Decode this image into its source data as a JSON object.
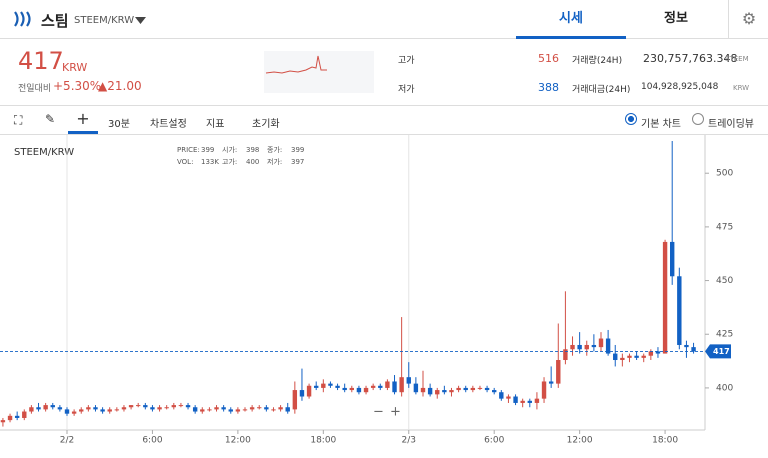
{
  "header": {
    "name": "스팀",
    "pair": "STEEM/KRW",
    "tabs": [
      "시세",
      "정보"
    ]
  },
  "ticker": {
    "price": 417,
    "unit": "KRW",
    "change_label": "전일대비",
    "change_pct": "+5.30%",
    "change_abs": "▲21.00",
    "high_label": "고가",
    "high": 516,
    "low_label": "저가",
    "low": 388,
    "volume_label": "거래량(24H)",
    "volume": "230,757,763.348",
    "volume_unit": "STEEM",
    "amount_label": "거래대금(24H)",
    "amount": "104,928,925,048",
    "amount_unit": "KRW"
  },
  "toolbar": {
    "interval": "30분",
    "settings": "차트설정",
    "indicators": "지표",
    "reset": "초기화",
    "basic": "기본 차트",
    "tradingview": "트레이딩뷰"
  },
  "chart_data": {
    "type": "candlestick",
    "title": "STEEM/KRW",
    "info": [
      [
        "PRICE:",
        "399"
      ],
      [
        "시가:",
        "398"
      ],
      [
        "종가:",
        "399"
      ],
      [
        "VOL:",
        "133K"
      ],
      [
        "고가:",
        "400"
      ],
      [
        "저가:",
        "397"
      ]
    ],
    "up_color": "#d24f45",
    "down_color": "#1261c4",
    "last": 417,
    "ylim": [
      380.4,
      517.8
    ],
    "yticks": [
      400,
      425,
      450,
      475,
      500
    ],
    "xticks": [
      {
        "value": 9,
        "label": "2/2"
      },
      {
        "value": 21,
        "label": "6:00"
      },
      {
        "value": 33,
        "label": "12:00"
      },
      {
        "value": 45,
        "label": "18:00"
      },
      {
        "value": 57,
        "label": "2/3"
      },
      {
        "value": 69,
        "label": "6:00"
      },
      {
        "value": 81,
        "label": "12:00"
      },
      {
        "value": 93,
        "label": "18:00"
      }
    ],
    "candles": [
      [
        384,
        386,
        382,
        385
      ],
      [
        385,
        388,
        384,
        387
      ],
      [
        387,
        389,
        385,
        386
      ],
      [
        386,
        390,
        385,
        389
      ],
      [
        389,
        392,
        388,
        391
      ],
      [
        391,
        393,
        389,
        390
      ],
      [
        390,
        393,
        389,
        392
      ],
      [
        392,
        393,
        390,
        391
      ],
      [
        391,
        392,
        389,
        390
      ],
      [
        390,
        391,
        387,
        388
      ],
      [
        388,
        390,
        387,
        389
      ],
      [
        389,
        391,
        388,
        390
      ],
      [
        390,
        392,
        389,
        391
      ],
      [
        391,
        392,
        389,
        390
      ],
      [
        390,
        391,
        388,
        389
      ],
      [
        389,
        391,
        388,
        390
      ],
      [
        390,
        391,
        389,
        390
      ],
      [
        390,
        392,
        389,
        391
      ],
      [
        391,
        392,
        390,
        392
      ],
      [
        392,
        393,
        391,
        392
      ],
      [
        392,
        393,
        390,
        391
      ],
      [
        391,
        392,
        389,
        390
      ],
      [
        390,
        392,
        389,
        391
      ],
      [
        391,
        392,
        390,
        391
      ],
      [
        391,
        393,
        390,
        392
      ],
      [
        392,
        393,
        391,
        392
      ],
      [
        392,
        393,
        390,
        391
      ],
      [
        391,
        392,
        388,
        389
      ],
      [
        389,
        391,
        388,
        390
      ],
      [
        390,
        391,
        389,
        390
      ],
      [
        390,
        392,
        389,
        391
      ],
      [
        391,
        392,
        389,
        390
      ],
      [
        390,
        391,
        388,
        389
      ],
      [
        389,
        391,
        388,
        390
      ],
      [
        390,
        391,
        389,
        390
      ],
      [
        390,
        392,
        389,
        391
      ],
      [
        391,
        392,
        390,
        391
      ],
      [
        391,
        392,
        389,
        390
      ],
      [
        390,
        391,
        389,
        390
      ],
      [
        390,
        392,
        389,
        391
      ],
      [
        391,
        393,
        388,
        389
      ],
      [
        390,
        403,
        388,
        399
      ],
      [
        399,
        409,
        394,
        396
      ],
      [
        396,
        402,
        395,
        401
      ],
      [
        401,
        403,
        399,
        400
      ],
      [
        400,
        404,
        398,
        402
      ],
      [
        402,
        403,
        400,
        401
      ],
      [
        401,
        402,
        399,
        400
      ],
      [
        400,
        402,
        398,
        399
      ],
      [
        399,
        401,
        398,
        400
      ],
      [
        400,
        401,
        397,
        398
      ],
      [
        398,
        401,
        397,
        400
      ],
      [
        400,
        402,
        399,
        401
      ],
      [
        401,
        402,
        399,
        400
      ],
      [
        400,
        404,
        399,
        403
      ],
      [
        403,
        406,
        397,
        398
      ],
      [
        398,
        433,
        396,
        405
      ],
      [
        405,
        412,
        400,
        402
      ],
      [
        402,
        405,
        397,
        398
      ],
      [
        398,
        408,
        396,
        400
      ],
      [
        400,
        402,
        396,
        397
      ],
      [
        397,
        400,
        395,
        399
      ],
      [
        399,
        401,
        397,
        398
      ],
      [
        398,
        400,
        396,
        399
      ],
      [
        399,
        401,
        398,
        400
      ],
      [
        400,
        401,
        398,
        399
      ],
      [
        399,
        401,
        398,
        400
      ],
      [
        400,
        401,
        399,
        400
      ],
      [
        400,
        401,
        398,
        399
      ],
      [
        399,
        400,
        397,
        398
      ],
      [
        398,
        399,
        394,
        395
      ],
      [
        395,
        397,
        393,
        396
      ],
      [
        396,
        397,
        392,
        393
      ],
      [
        393,
        395,
        391,
        394
      ],
      [
        394,
        395,
        391,
        393
      ],
      [
        393,
        398,
        390,
        395
      ],
      [
        395,
        405,
        393,
        403
      ],
      [
        403,
        410,
        400,
        402
      ],
      [
        402,
        430,
        400,
        413
      ],
      [
        413,
        445,
        411,
        418
      ],
      [
        418,
        424,
        415,
        420
      ],
      [
        420,
        426,
        416,
        418
      ],
      [
        418,
        422,
        415,
        420
      ],
      [
        420,
        425,
        417,
        419
      ],
      [
        419,
        426,
        417,
        423
      ],
      [
        423,
        427,
        415,
        416
      ],
      [
        416,
        420,
        410,
        413
      ],
      [
        413,
        416,
        410,
        414
      ],
      [
        414,
        416,
        412,
        415
      ],
      [
        415,
        417,
        413,
        414
      ],
      [
        414,
        416,
        412,
        415
      ],
      [
        415,
        418,
        413,
        417
      ],
      [
        417,
        419,
        414,
        416
      ],
      [
        416,
        469,
        416,
        468
      ],
      [
        468,
        515,
        448,
        452
      ],
      [
        452,
        456,
        418,
        420
      ],
      [
        420,
        422,
        414,
        419
      ],
      [
        419,
        421,
        416,
        417
      ]
    ]
  }
}
